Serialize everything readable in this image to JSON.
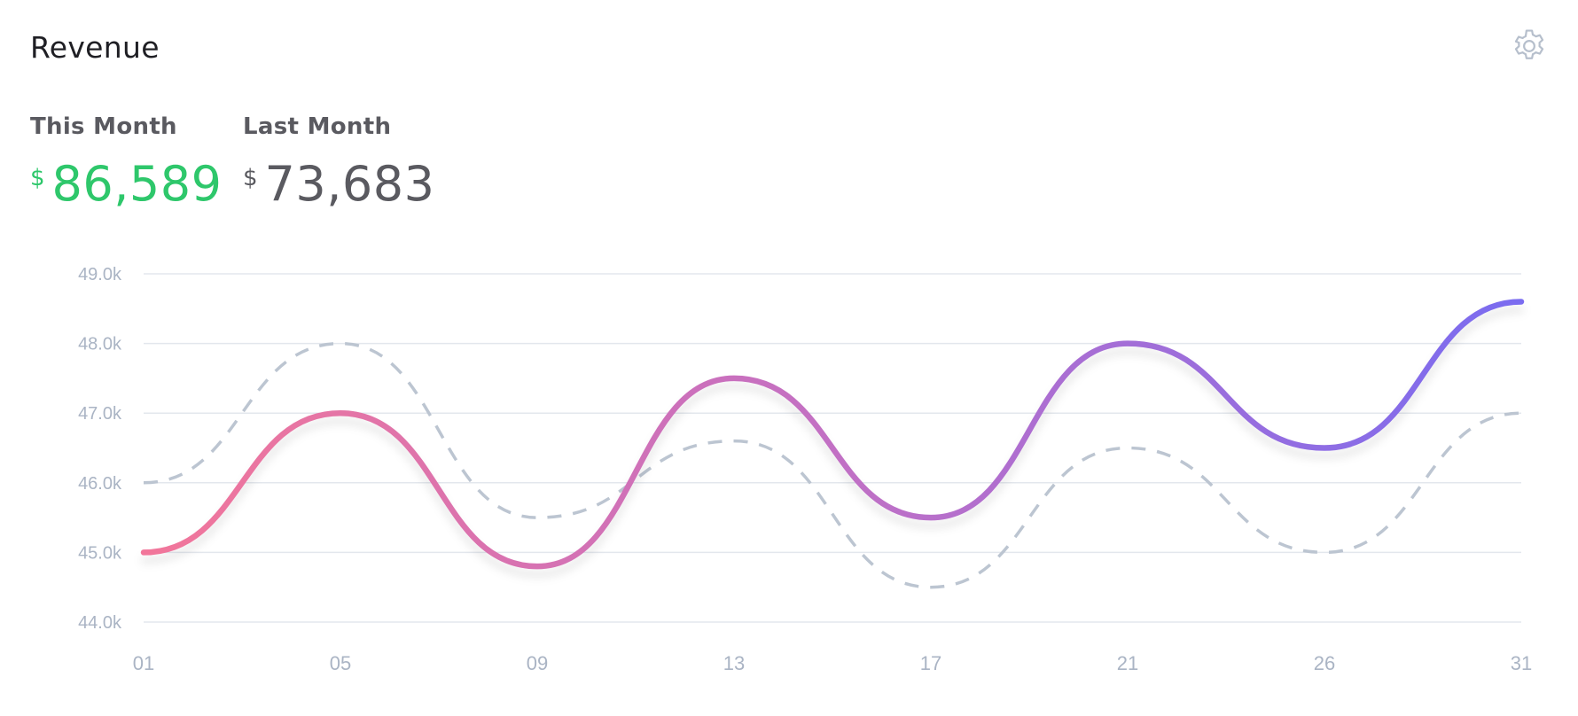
{
  "card": {
    "title": "Revenue"
  },
  "settings": {
    "icon": "gear-icon"
  },
  "stats": {
    "this_month": {
      "label": "This Month",
      "currency": "$",
      "value": "86,589",
      "color": "#2ec76b"
    },
    "last_month": {
      "label": "Last Month",
      "currency": "$",
      "value": "73,683",
      "color": "#5a5a60"
    }
  },
  "chart_data": {
    "type": "line",
    "categories": [
      "01",
      "05",
      "09",
      "13",
      "17",
      "21",
      "26",
      "31"
    ],
    "y_tick_labels": [
      "49.0k",
      "48.0k",
      "47.0k",
      "46.0k",
      "45.0k",
      "44.0k"
    ],
    "ylim": [
      44.0,
      49.0
    ],
    "y_unit": "k",
    "grid": true,
    "series": [
      {
        "role": "this_month",
        "values": [
          45.0,
          47.0,
          44.8,
          47.5,
          45.5,
          48.0,
          46.5,
          48.6
        ],
        "style": "solid",
        "gradient": [
          "#f2769a",
          "#c26fc4",
          "#7a6cf0"
        ]
      },
      {
        "role": "last_month",
        "values": [
          46.0,
          48.0,
          45.5,
          46.6,
          44.5,
          46.5,
          45.0,
          47.0
        ],
        "style": "dashed",
        "color": "#bcc5d1"
      }
    ]
  }
}
